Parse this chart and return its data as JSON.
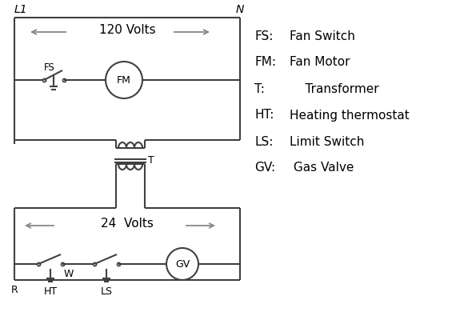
{
  "bg_color": "#ffffff",
  "line_color": "#404040",
  "arrow_color": "#888888",
  "text_color": "#000000",
  "legend_items": [
    [
      "FS:",
      "Fan Switch"
    ],
    [
      "FM:",
      "Fan Motor"
    ],
    [
      "T:",
      "    Transformer"
    ],
    [
      "HT:",
      "Heating thermostat"
    ],
    [
      "LS:",
      "Limit Switch"
    ],
    [
      "GV:",
      " Gas Valve"
    ]
  ],
  "volts_120": "120 Volts",
  "volts_24": "24  Volts",
  "L1": "L1",
  "N": "N",
  "R_label": "R",
  "W_label": "W",
  "HT_label": "HT",
  "LS_label": "LS",
  "T_label": "T",
  "FS_label": "FS",
  "FM_label": "FM",
  "GV_label": "GV"
}
